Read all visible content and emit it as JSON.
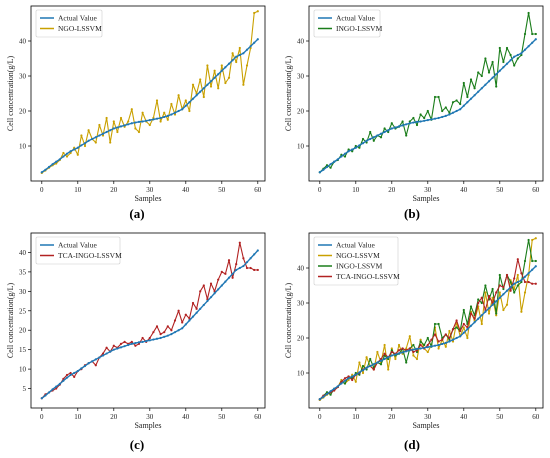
{
  "colors": {
    "actual": "#1f77b4",
    "ngo": "#c9a000",
    "ingo": "#1a7d1a",
    "tca": "#b22222"
  },
  "chart_data": [
    {
      "type": "line",
      "panel_label": "(a)",
      "xlabel": "Samples",
      "ylabel": "Cell concentration(g/L)",
      "xlim": [
        -3,
        62
      ],
      "ylim": [
        0,
        50
      ],
      "xticks": [
        0,
        10,
        20,
        30,
        40,
        50,
        60
      ],
      "yticks": [
        10,
        20,
        30,
        40
      ],
      "legend_position": "top-left",
      "series": [
        {
          "name": "Actual Value",
          "color_key": "actual",
          "values": [
            2.5,
            3.2,
            4.0,
            4.8,
            5.5,
            6.2,
            7.0,
            7.8,
            8.5,
            9.0,
            9.5,
            10.2,
            10.8,
            11.5,
            12.0,
            12.5,
            13.0,
            13.5,
            14.0,
            14.5,
            15.0,
            15.3,
            15.6,
            15.9,
            16.2,
            16.5,
            16.7,
            16.9,
            17.0,
            17.2,
            17.4,
            17.6,
            17.8,
            18.0,
            18.3,
            18.6,
            19.0,
            19.5,
            20.0,
            20.5,
            21.5,
            22.5,
            23.5,
            24.5,
            25.5,
            26.5,
            27.5,
            28.5,
            29.5,
            30.5,
            31.5,
            32.5,
            33.5,
            34.5,
            35.5,
            36.0,
            36.5,
            37.5,
            38.5,
            39.5,
            40.5
          ]
        },
        {
          "name": "NGO-LSSVM",
          "color_key": "ngo",
          "values": [
            2.3,
            3.0,
            3.8,
            4.5,
            5.0,
            6.0,
            8.0,
            7.0,
            8.0,
            9.5,
            7.5,
            13.0,
            10.0,
            14.5,
            12.0,
            11.0,
            16.0,
            13.0,
            18.0,
            11.0,
            17.0,
            14.0,
            18.0,
            15.5,
            17.0,
            20.5,
            15.0,
            14.0,
            19.5,
            17.0,
            16.0,
            18.0,
            23.0,
            17.0,
            19.5,
            17.5,
            22.0,
            19.0,
            24.5,
            20.5,
            23.0,
            20.0,
            27.5,
            25.0,
            29.0,
            24.0,
            33.0,
            27.0,
            31.5,
            26.5,
            33.0,
            28.0,
            29.5,
            36.5,
            34.0,
            38.0,
            27.5,
            33.0,
            38.0,
            48.0,
            48.5
          ]
        }
      ]
    },
    {
      "type": "line",
      "panel_label": "(b)",
      "xlabel": "Samples",
      "ylabel": "Cell concentration(g/L)",
      "xlim": [
        -3,
        62
      ],
      "ylim": [
        0,
        50
      ],
      "xticks": [
        0,
        10,
        20,
        30,
        40,
        50,
        60
      ],
      "yticks": [
        10,
        20,
        30,
        40
      ],
      "legend_position": "top-left",
      "series": [
        {
          "name": "Actual Value",
          "color_key": "actual",
          "values": [
            2.5,
            3.2,
            4.0,
            4.8,
            5.5,
            6.2,
            7.0,
            7.8,
            8.5,
            9.0,
            9.5,
            10.2,
            10.8,
            11.5,
            12.0,
            12.5,
            13.0,
            13.5,
            14.0,
            14.5,
            15.0,
            15.3,
            15.6,
            15.9,
            16.2,
            16.5,
            16.7,
            16.9,
            17.0,
            17.2,
            17.4,
            17.6,
            17.8,
            18.0,
            18.3,
            18.6,
            19.0,
            19.5,
            20.0,
            20.5,
            21.5,
            22.5,
            23.5,
            24.5,
            25.5,
            26.5,
            27.5,
            28.5,
            29.5,
            30.5,
            31.5,
            32.5,
            33.5,
            34.5,
            35.5,
            36.0,
            36.5,
            37.5,
            38.5,
            39.5,
            40.5
          ]
        },
        {
          "name": "INGO-LSSVM",
          "color_key": "ingo",
          "values": [
            2.5,
            3.5,
            4.5,
            3.8,
            5.5,
            6.0,
            7.5,
            7.0,
            9.0,
            8.5,
            10.0,
            9.5,
            12.0,
            11.0,
            14.0,
            11.5,
            13.0,
            12.5,
            15.0,
            14.0,
            16.5,
            15.0,
            15.5,
            17.0,
            13.0,
            17.0,
            18.0,
            16.0,
            19.0,
            18.0,
            20.0,
            17.5,
            24.0,
            24.0,
            20.0,
            21.0,
            19.5,
            22.5,
            23.0,
            22.0,
            28.0,
            24.0,
            29.0,
            26.5,
            31.0,
            30.0,
            35.0,
            31.0,
            34.0,
            27.0,
            38.0,
            34.0,
            38.0,
            36.0,
            33.0,
            35.0,
            36.0,
            42.0,
            48.0,
            42.0,
            42.0
          ]
        }
      ]
    },
    {
      "type": "line",
      "panel_label": "(c)",
      "xlabel": "Samples",
      "ylabel": "Cell concentration(g/L)",
      "xlim": [
        -3,
        62
      ],
      "ylim": [
        0,
        45
      ],
      "xticks": [
        0,
        10,
        20,
        30,
        40,
        50,
        60
      ],
      "yticks": [
        5,
        10,
        15,
        20,
        25,
        30,
        35,
        40
      ],
      "legend_position": "top-left",
      "series": [
        {
          "name": "Actual Value",
          "color_key": "actual",
          "values": [
            2.5,
            3.2,
            4.0,
            4.8,
            5.5,
            6.2,
            7.0,
            7.8,
            8.5,
            9.0,
            9.5,
            10.2,
            10.8,
            11.5,
            12.0,
            12.5,
            13.0,
            13.5,
            14.0,
            14.5,
            15.0,
            15.3,
            15.6,
            15.9,
            16.2,
            16.5,
            16.7,
            16.9,
            17.0,
            17.2,
            17.4,
            17.6,
            17.8,
            18.0,
            18.3,
            18.6,
            19.0,
            19.5,
            20.0,
            20.5,
            21.5,
            22.5,
            23.5,
            24.5,
            25.5,
            26.5,
            27.5,
            28.5,
            29.5,
            30.5,
            31.5,
            32.5,
            33.5,
            34.5,
            35.5,
            36.0,
            36.5,
            37.5,
            38.5,
            39.5,
            40.5
          ]
        },
        {
          "name": "TCA-INGO-LSSVM",
          "color_key": "tca",
          "values": [
            2.5,
            3.5,
            4.0,
            4.5,
            5.0,
            6.0,
            7.5,
            8.5,
            9.0,
            8.0,
            9.5,
            10.0,
            11.0,
            11.5,
            12.0,
            11.0,
            13.0,
            14.0,
            15.5,
            14.5,
            16.0,
            15.5,
            16.5,
            17.0,
            16.5,
            17.0,
            16.0,
            16.5,
            18.0,
            17.0,
            18.0,
            19.5,
            21.0,
            19.0,
            19.5,
            21.0,
            20.0,
            22.5,
            25.0,
            22.0,
            24.0,
            23.0,
            27.0,
            25.5,
            30.0,
            31.5,
            28.0,
            32.0,
            30.0,
            33.0,
            35.0,
            34.5,
            38.0,
            33.5,
            37.0,
            42.5,
            38.5,
            36.0,
            36.0,
            35.5,
            35.5
          ]
        }
      ]
    },
    {
      "type": "line",
      "panel_label": "(d)",
      "xlabel": "Samples",
      "ylabel": "Cell concentration(g/L)",
      "xlim": [
        -3,
        62
      ],
      "ylim": [
        0,
        50
      ],
      "xticks": [
        0,
        10,
        20,
        30,
        40,
        50,
        60
      ],
      "yticks": [
        10,
        20,
        30,
        40
      ],
      "legend_position": "top-left",
      "series": [
        {
          "name": "Actual Value",
          "color_key": "actual",
          "values": [
            2.5,
            3.2,
            4.0,
            4.8,
            5.5,
            6.2,
            7.0,
            7.8,
            8.5,
            9.0,
            9.5,
            10.2,
            10.8,
            11.5,
            12.0,
            12.5,
            13.0,
            13.5,
            14.0,
            14.5,
            15.0,
            15.3,
            15.6,
            15.9,
            16.2,
            16.5,
            16.7,
            16.9,
            17.0,
            17.2,
            17.4,
            17.6,
            17.8,
            18.0,
            18.3,
            18.6,
            19.0,
            19.5,
            20.0,
            20.5,
            21.5,
            22.5,
            23.5,
            24.5,
            25.5,
            26.5,
            27.5,
            28.5,
            29.5,
            30.5,
            31.5,
            32.5,
            33.5,
            34.5,
            35.5,
            36.0,
            36.5,
            37.5,
            38.5,
            39.5,
            40.5
          ]
        },
        {
          "name": "NGO-LSSVM",
          "color_key": "ngo",
          "values": [
            2.3,
            3.0,
            3.8,
            4.5,
            5.0,
            6.0,
            8.0,
            7.0,
            8.0,
            9.5,
            7.5,
            13.0,
            10.0,
            14.5,
            12.0,
            11.0,
            16.0,
            13.0,
            18.0,
            11.0,
            17.0,
            14.0,
            18.0,
            15.5,
            17.0,
            20.5,
            15.0,
            14.0,
            19.5,
            17.0,
            16.0,
            18.0,
            23.0,
            17.0,
            19.5,
            17.5,
            22.0,
            19.0,
            24.5,
            20.5,
            23.0,
            20.0,
            27.5,
            25.0,
            29.0,
            24.0,
            33.0,
            27.0,
            31.5,
            26.5,
            33.0,
            28.0,
            29.5,
            36.5,
            34.0,
            38.0,
            27.5,
            33.0,
            38.0,
            48.0,
            48.5
          ]
        },
        {
          "name": "INGO-LSSVM",
          "color_key": "ingo",
          "values": [
            2.5,
            3.5,
            4.5,
            3.8,
            5.5,
            6.0,
            7.5,
            7.0,
            9.0,
            8.5,
            10.0,
            9.5,
            12.0,
            11.0,
            14.0,
            11.5,
            13.0,
            12.5,
            15.0,
            14.0,
            16.5,
            15.0,
            15.5,
            17.0,
            13.0,
            17.0,
            18.0,
            16.0,
            19.0,
            18.0,
            20.0,
            17.5,
            24.0,
            24.0,
            20.0,
            21.0,
            19.5,
            22.5,
            23.0,
            22.0,
            28.0,
            24.0,
            29.0,
            26.5,
            31.0,
            30.0,
            35.0,
            31.0,
            34.0,
            27.0,
            38.0,
            34.0,
            38.0,
            36.0,
            33.0,
            35.0,
            36.0,
            42.0,
            48.0,
            42.0,
            42.0
          ]
        },
        {
          "name": "TCA-INGO-LSSVM",
          "color_key": "tca",
          "values": [
            2.5,
            3.5,
            4.0,
            4.5,
            5.0,
            6.0,
            7.5,
            8.5,
            9.0,
            8.0,
            9.5,
            10.0,
            11.0,
            11.5,
            12.0,
            11.0,
            13.0,
            14.0,
            15.5,
            14.5,
            16.0,
            15.5,
            16.5,
            17.0,
            16.5,
            17.0,
            16.0,
            16.5,
            18.0,
            17.0,
            18.0,
            19.5,
            21.0,
            19.0,
            19.5,
            21.0,
            20.0,
            22.5,
            25.0,
            22.0,
            24.0,
            23.0,
            27.0,
            25.5,
            30.0,
            31.5,
            28.0,
            32.0,
            30.0,
            33.0,
            35.0,
            34.5,
            38.0,
            33.5,
            37.0,
            42.5,
            38.5,
            36.0,
            36.0,
            35.5,
            35.5
          ]
        }
      ]
    }
  ]
}
